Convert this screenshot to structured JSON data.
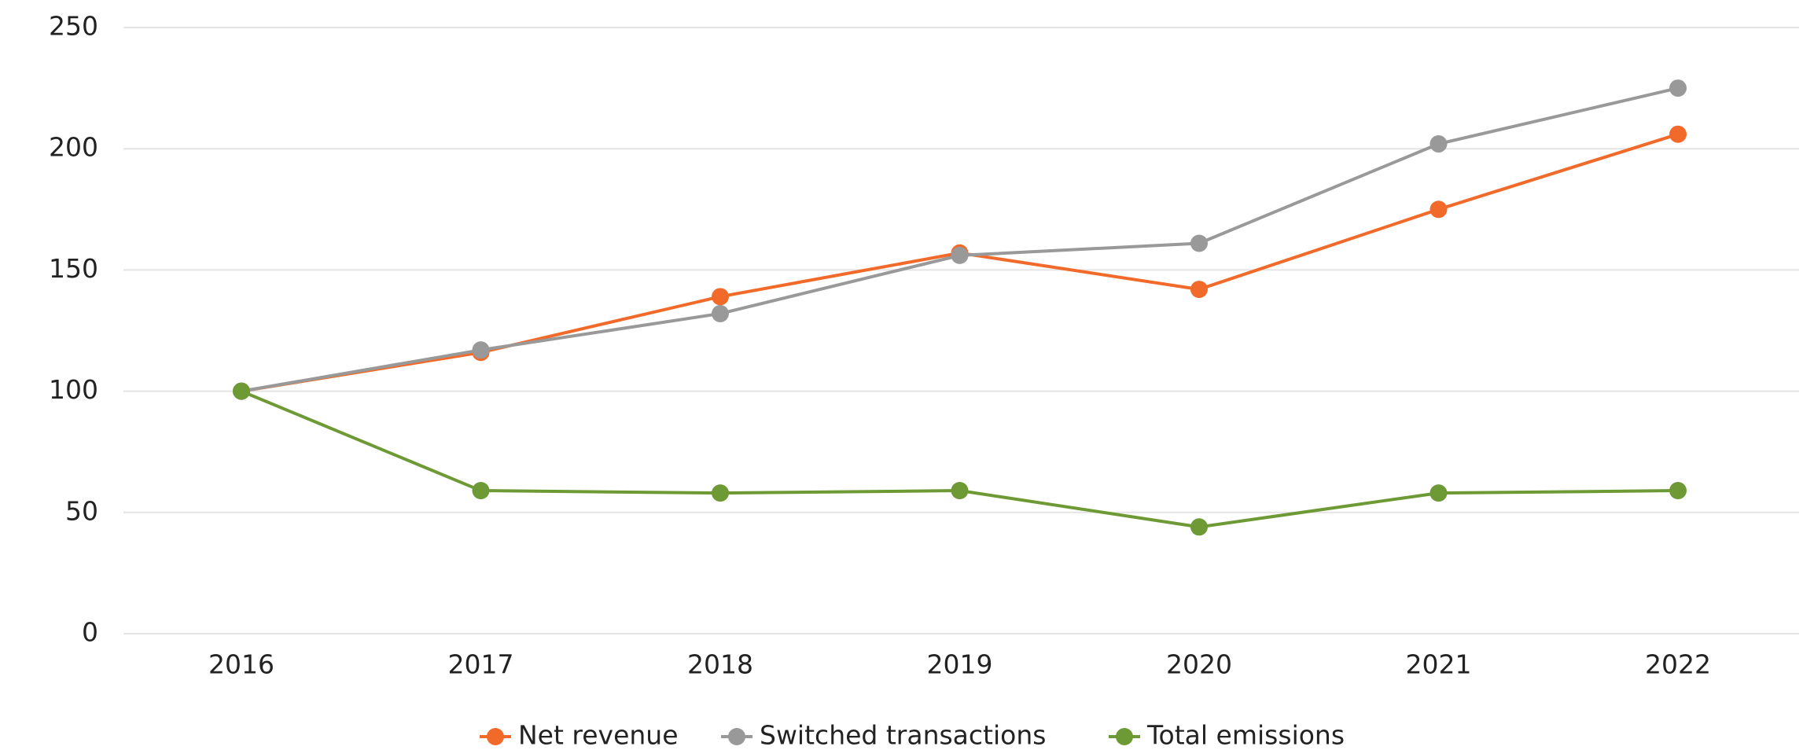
{
  "chart_data": {
    "type": "line",
    "categories": [
      "2016",
      "2017",
      "2018",
      "2019",
      "2020",
      "2021",
      "2022"
    ],
    "series": [
      {
        "name": "Net revenue",
        "color": "#f26a2a",
        "values": [
          100,
          116,
          139,
          157,
          142,
          175,
          206
        ]
      },
      {
        "name": "Switched transactions",
        "color": "#999999",
        "values": [
          100,
          117,
          132,
          156,
          161,
          202,
          225
        ]
      },
      {
        "name": "Total emissions",
        "color": "#6e9a35",
        "values": [
          100,
          59,
          58,
          59,
          44,
          58,
          59
        ]
      }
    ],
    "ylim": [
      0,
      250
    ],
    "yticks": [
      0,
      50,
      100,
      150,
      200,
      250
    ],
    "grid": true,
    "legend": "bottom"
  }
}
